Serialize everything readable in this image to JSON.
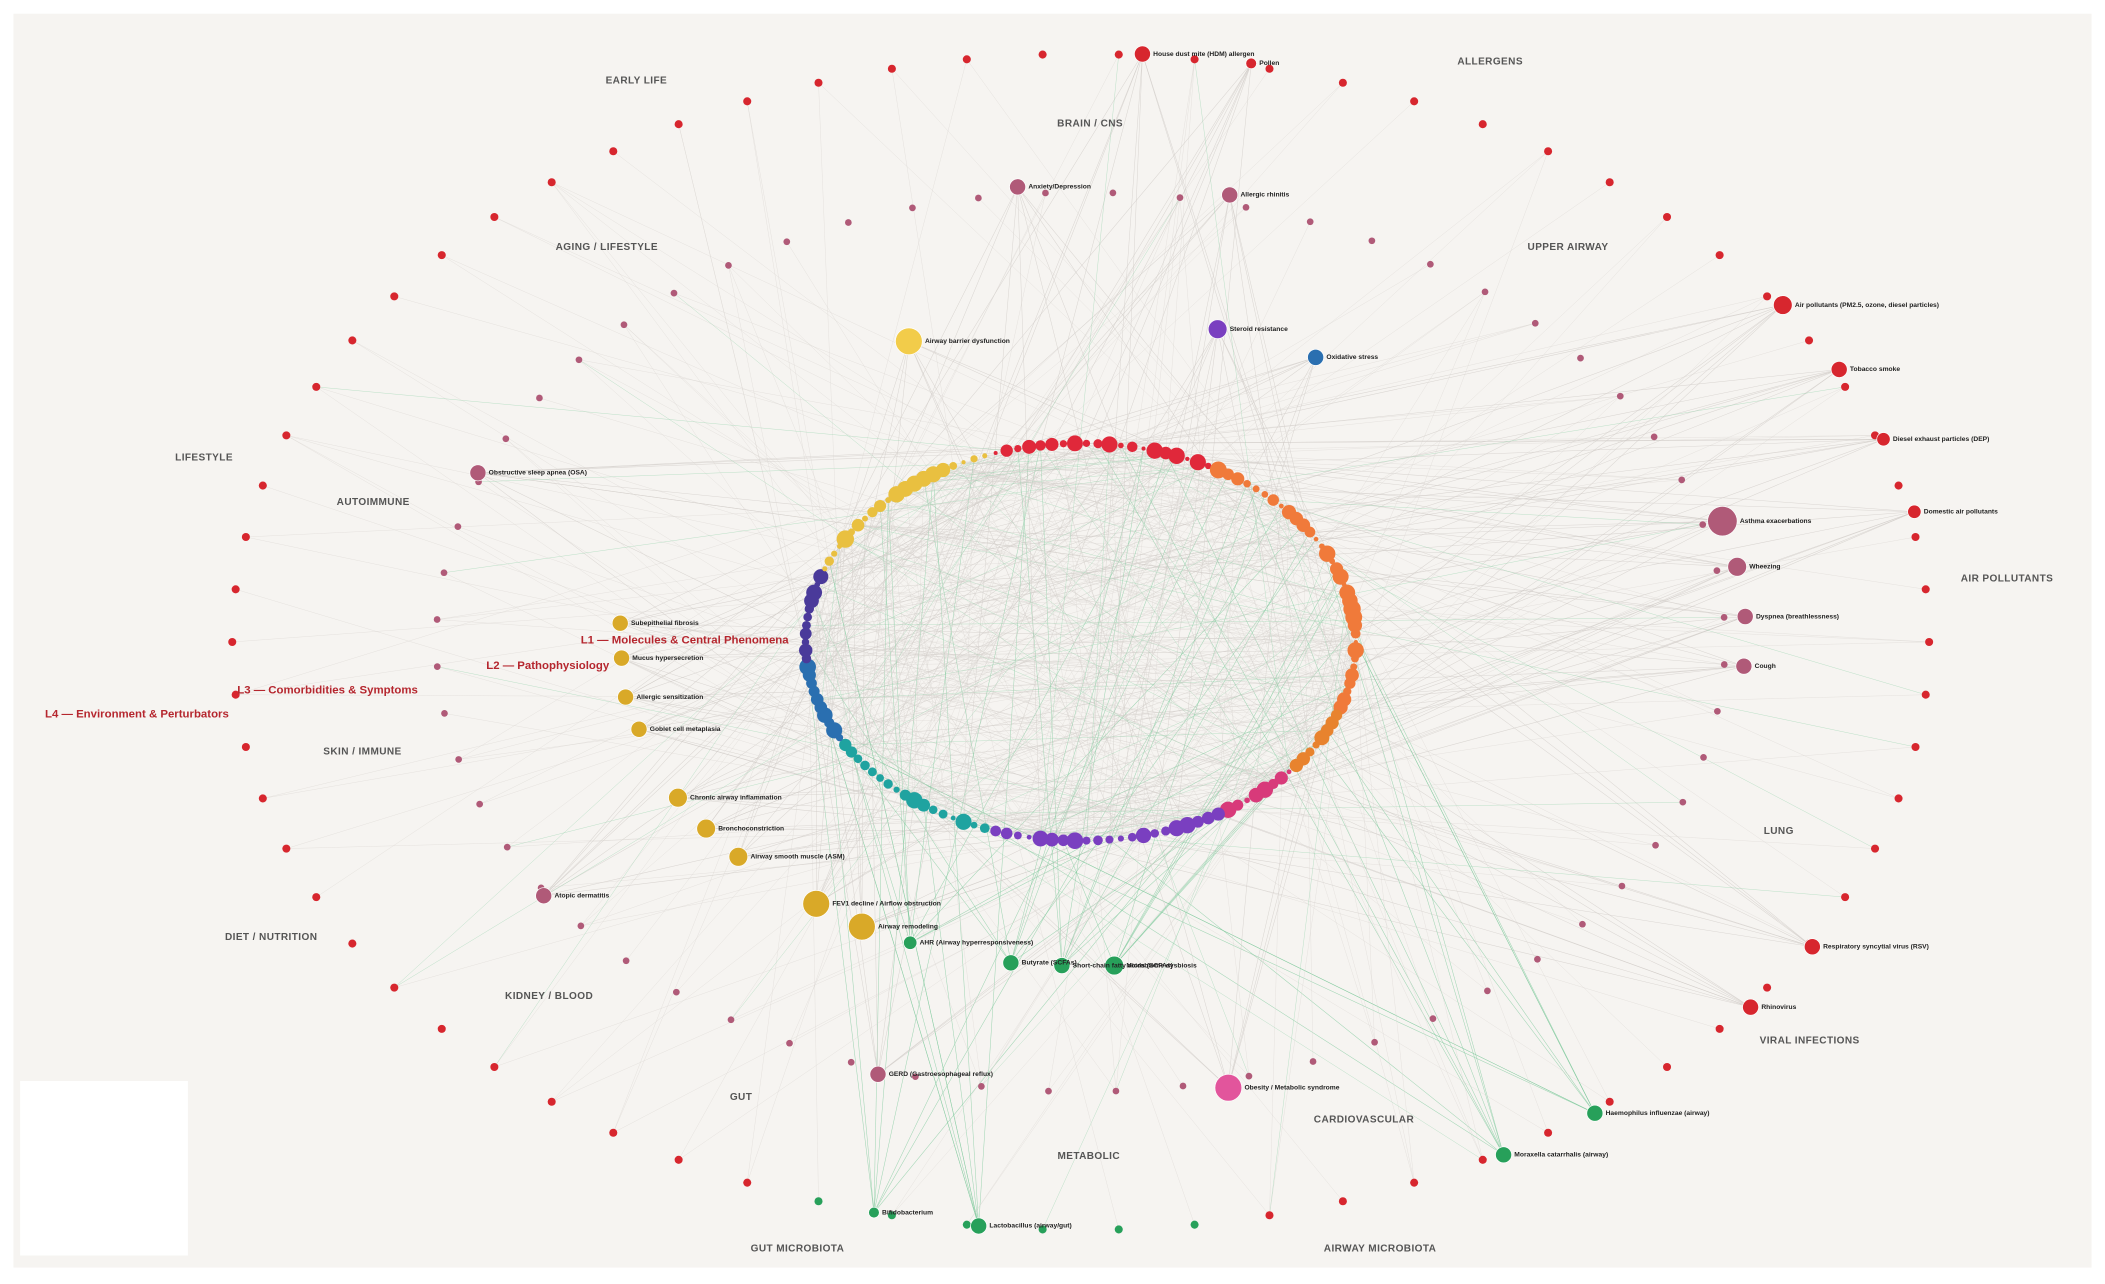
{
  "layer_labels": [
    "L1 — Molecules & Central Phenomena",
    "L2 — Pathophysiology",
    "L3 — Comorbidities & Symptoms",
    "L4 — Environment & Perturbators"
  ],
  "sector_labels": [
    "EARLY LIFE",
    "BRAIN / CNS",
    "ALLERGENS",
    "AGING / LIFESTYLE",
    "UPPER AIRWAY",
    "LIFESTYLE",
    "AUTOIMMUNE",
    "AIR POLLUTANTS",
    "SKIN / IMMUNE",
    "LUNG",
    "DIET / NUTRITION",
    "KIDNEY / BLOOD",
    "VIRAL INFECTIONS",
    "GUT",
    "CARDIOVASCULAR",
    "METABOLIC",
    "GUT MICROBIOTA",
    "AIRWAY MICROBIOTA"
  ],
  "nodes": [
    {
      "label": "House dust mite (HDM) allergen",
      "color": "#d7262e"
    },
    {
      "label": "Pollen",
      "color": "#d7262e"
    },
    {
      "label": "Air pollutants (PM2.5, ozone, diesel particles)",
      "color": "#d7262e"
    },
    {
      "label": "Tobacco smoke",
      "color": "#d7262e"
    },
    {
      "label": "Diesel exhaust particles (DEP)",
      "color": "#d7262e"
    },
    {
      "label": "Domestic air pollutants",
      "color": "#d7262e"
    },
    {
      "label": "Asthma exacerbations",
      "color": "#b05a78"
    },
    {
      "label": "Wheezing",
      "color": "#b05a78"
    },
    {
      "label": "Dyspnea (breathlessness)",
      "color": "#b05a78"
    },
    {
      "label": "Cough",
      "color": "#b05a78"
    },
    {
      "label": "Respiratory syncytial virus (RSV)",
      "color": "#d7262e"
    },
    {
      "label": "Rhinovirus",
      "color": "#d7262e"
    },
    {
      "label": "Haemophilus influenzae (airway)",
      "color": "#27a05a"
    },
    {
      "label": "Moraxella catarrhalis (airway)",
      "color": "#27a05a"
    },
    {
      "label": "Lactobacillus (airway/gut)",
      "color": "#27a05a"
    },
    {
      "label": "Bifidobacterium",
      "color": "#27a05a"
    },
    {
      "label": "Obesity / Metabolic syndrome",
      "color": "#e2559c"
    },
    {
      "label": "Steroid resistance",
      "color": "#7a3fc0"
    },
    {
      "label": "Oxidative stress",
      "color": "#2a6fb0"
    },
    {
      "label": "Airway barrier dysfunction",
      "color": "#f2cc4a"
    },
    {
      "label": "Chronic airway inflammation",
      "color": "#d9a928"
    },
    {
      "label": "Bronchoconstriction",
      "color": "#d9a928"
    },
    {
      "label": "Airway smooth muscle (ASM)",
      "color": "#d9a928"
    },
    {
      "label": "FEV1 decline / Airflow obstruction",
      "color": "#d9a928"
    },
    {
      "label": "Airway remodeling",
      "color": "#d9a928"
    },
    {
      "label": "AHR (Airway hyperresponsiveness)",
      "color": "#27a05a"
    },
    {
      "label": "Butyrate (SCFAs)",
      "color": "#27a05a"
    },
    {
      "label": "Short-chain fatty acids (SCFAs)",
      "color": "#27a05a"
    },
    {
      "label": "Microbiome dysbiosis",
      "color": "#27a05a"
    },
    {
      "label": "Anxiety/Depression",
      "color": "#b05a78"
    },
    {
      "label": "Allergic rhinitis",
      "color": "#b05a78"
    },
    {
      "label": "Obstructive sleep apnea (OSA)",
      "color": "#b05a78"
    },
    {
      "label": "Atopic dermatitis",
      "color": "#b05a78"
    },
    {
      "label": "GERD (Gastroesophageal reflux)",
      "color": "#b05a78"
    },
    {
      "label": "Subepithelial fibrosis",
      "color": "#d9a928"
    },
    {
      "label": "Mucus hypersecretion",
      "color": "#d9a928"
    },
    {
      "label": "Allergic sensitization",
      "color": "#d9a928"
    },
    {
      "label": "Goblet cell metaplasia",
      "color": "#d9a928"
    }
  ]
}
